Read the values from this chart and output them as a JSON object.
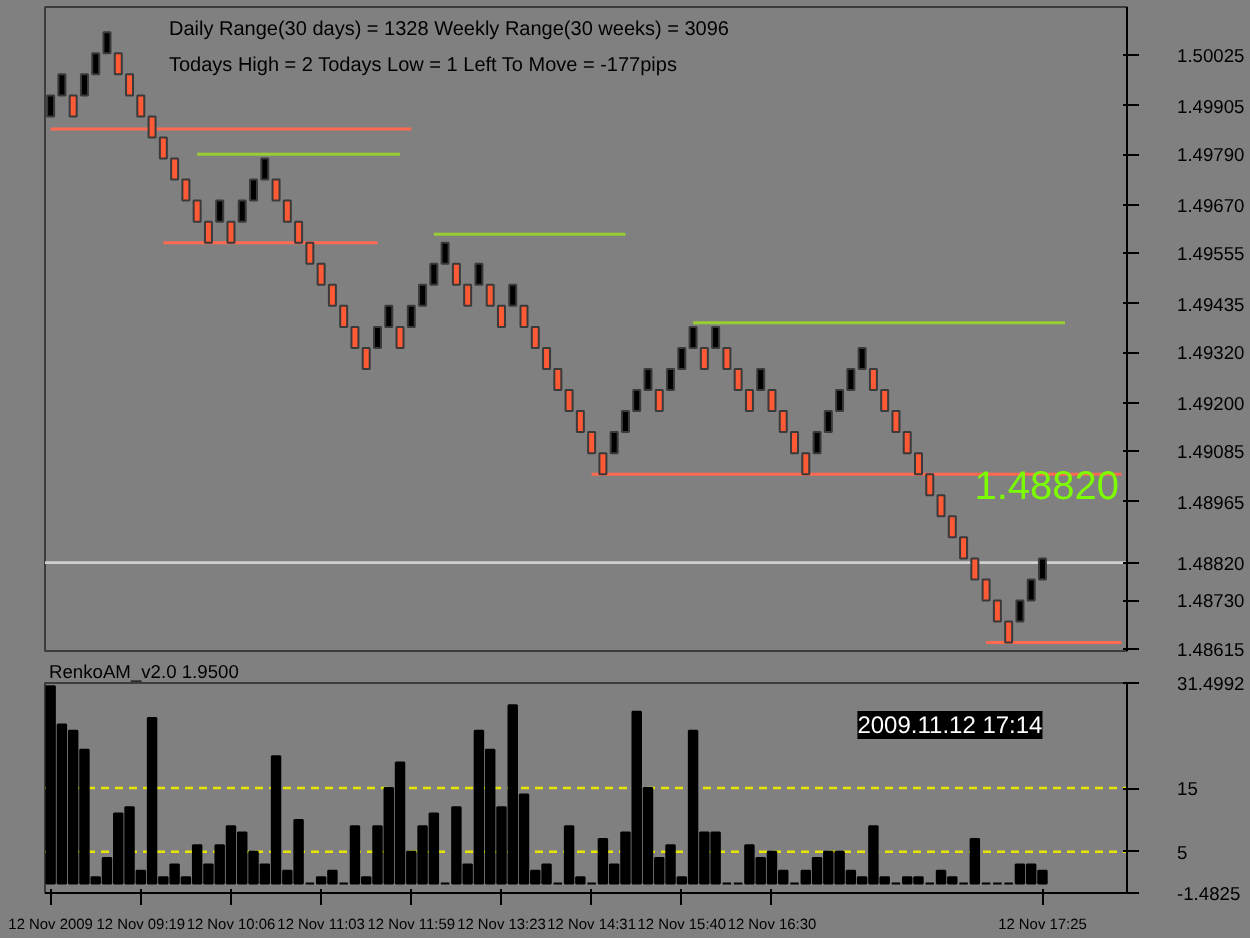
{
  "chart_data": [
    {
      "type": "candlestick",
      "categories": [
        null,
        null,
        null,
        null,
        null,
        null,
        null,
        null,
        null,
        null,
        null,
        null,
        null,
        null,
        null,
        null,
        null,
        null,
        null,
        null,
        null,
        null,
        null,
        null,
        null,
        null,
        null,
        null,
        null,
        null,
        null,
        null,
        null,
        null,
        null,
        null,
        null,
        null,
        null,
        null,
        null,
        null,
        null,
        null,
        null,
        null,
        null,
        null,
        null,
        null,
        null,
        null,
        null,
        null,
        null,
        null,
        null,
        null,
        null,
        null,
        null,
        null,
        null,
        null,
        null,
        null,
        null,
        null,
        null,
        null,
        null,
        null,
        null,
        null,
        null,
        null,
        null,
        null,
        null,
        null,
        null,
        null,
        null,
        null,
        null,
        null,
        null,
        null,
        null,
        null,
        null,
        null,
        null,
        null,
        null,
        null
      ],
      "ohlc": [
        [
          1.4988,
          1.4993,
          1.4988,
          1.4993
        ],
        [
          1.4993,
          1.4998,
          1.4993,
          1.4998
        ],
        [
          1.4993,
          1.4993,
          1.4988,
          1.4988
        ],
        [
          1.4993,
          1.4998,
          1.4993,
          1.4998
        ],
        [
          1.4998,
          1.5003,
          1.4998,
          1.5003
        ],
        [
          1.5003,
          1.5008,
          1.5003,
          1.5008
        ],
        [
          1.5003,
          1.5003,
          1.4998,
          1.4998
        ],
        [
          1.4998,
          1.4998,
          1.4993,
          1.4993
        ],
        [
          1.4993,
          1.4993,
          1.4988,
          1.4988
        ],
        [
          1.4988,
          1.4988,
          1.4983,
          1.4983
        ],
        [
          1.4983,
          1.4983,
          1.4978,
          1.4978
        ],
        [
          1.4978,
          1.4978,
          1.4973,
          1.4973
        ],
        [
          1.4973,
          1.4973,
          1.4968,
          1.4968
        ],
        [
          1.4968,
          1.4968,
          1.4963,
          1.4963
        ],
        [
          1.4963,
          1.4963,
          1.4958,
          1.4958
        ],
        [
          1.4963,
          1.4968,
          1.4963,
          1.4968
        ],
        [
          1.4963,
          1.4963,
          1.4958,
          1.4958
        ],
        [
          1.4963,
          1.4968,
          1.4963,
          1.4968
        ],
        [
          1.4968,
          1.4973,
          1.4968,
          1.4973
        ],
        [
          1.4973,
          1.4978,
          1.4973,
          1.4978
        ],
        [
          1.4973,
          1.4973,
          1.4968,
          1.4968
        ],
        [
          1.4968,
          1.4968,
          1.4963,
          1.4963
        ],
        [
          1.4963,
          1.4963,
          1.4958,
          1.4958
        ],
        [
          1.4958,
          1.4958,
          1.4953,
          1.4953
        ],
        [
          1.4953,
          1.4953,
          1.4948,
          1.4948
        ],
        [
          1.4948,
          1.4948,
          1.4943,
          1.4943
        ],
        [
          1.4943,
          1.4943,
          1.4938,
          1.4938
        ],
        [
          1.4938,
          1.4938,
          1.4933,
          1.4933
        ],
        [
          1.4933,
          1.4933,
          1.4928,
          1.4928
        ],
        [
          1.4933,
          1.4938,
          1.4933,
          1.4938
        ],
        [
          1.4938,
          1.4943,
          1.4938,
          1.4943
        ],
        [
          1.4938,
          1.4938,
          1.4933,
          1.4933
        ],
        [
          1.4938,
          1.4943,
          1.4938,
          1.4943
        ],
        [
          1.4943,
          1.4948,
          1.4943,
          1.4948
        ],
        [
          1.4948,
          1.4953,
          1.4948,
          1.4953
        ],
        [
          1.4953,
          1.4958,
          1.4953,
          1.4958
        ],
        [
          1.4953,
          1.4953,
          1.4948,
          1.4948
        ],
        [
          1.4948,
          1.4948,
          1.4943,
          1.4943
        ],
        [
          1.4948,
          1.4953,
          1.4948,
          1.4953
        ],
        [
          1.4948,
          1.4948,
          1.4943,
          1.4943
        ],
        [
          1.4943,
          1.4943,
          1.4938,
          1.4938
        ],
        [
          1.4943,
          1.4948,
          1.4943,
          1.4948
        ],
        [
          1.4943,
          1.4943,
          1.4938,
          1.4938
        ],
        [
          1.4938,
          1.4938,
          1.4933,
          1.4933
        ],
        [
          1.4933,
          1.4933,
          1.4928,
          1.4928
        ],
        [
          1.4928,
          1.4928,
          1.4923,
          1.4923
        ],
        [
          1.4923,
          1.4923,
          1.4918,
          1.4918
        ],
        [
          1.4918,
          1.4918,
          1.4913,
          1.4913
        ],
        [
          1.4913,
          1.4913,
          1.4908,
          1.4908
        ],
        [
          1.4908,
          1.4908,
          1.4903,
          1.4903
        ],
        [
          1.4908,
          1.4913,
          1.4908,
          1.4913
        ],
        [
          1.4913,
          1.4918,
          1.4913,
          1.4918
        ],
        [
          1.4918,
          1.4923,
          1.4918,
          1.4923
        ],
        [
          1.4923,
          1.4928,
          1.4923,
          1.4928
        ],
        [
          1.4923,
          1.4923,
          1.4918,
          1.4918
        ],
        [
          1.4923,
          1.4928,
          1.4923,
          1.4928
        ],
        [
          1.4928,
          1.4933,
          1.4928,
          1.4933
        ],
        [
          1.4933,
          1.4938,
          1.4933,
          1.4938
        ],
        [
          1.4933,
          1.4933,
          1.4928,
          1.4928
        ],
        [
          1.4933,
          1.4938,
          1.4933,
          1.4938
        ],
        [
          1.4933,
          1.4933,
          1.4928,
          1.4928
        ],
        [
          1.4928,
          1.4928,
          1.4923,
          1.4923
        ],
        [
          1.4923,
          1.4923,
          1.4918,
          1.4918
        ],
        [
          1.4923,
          1.4928,
          1.4923,
          1.4928
        ],
        [
          1.4923,
          1.4923,
          1.4918,
          1.4918
        ],
        [
          1.4918,
          1.4918,
          1.4913,
          1.4913
        ],
        [
          1.4913,
          1.4913,
          1.4908,
          1.4908
        ],
        [
          1.4908,
          1.4908,
          1.4903,
          1.4903
        ],
        [
          1.4908,
          1.4913,
          1.4908,
          1.4913
        ],
        [
          1.4913,
          1.4918,
          1.4913,
          1.4918
        ],
        [
          1.4918,
          1.4923,
          1.4918,
          1.4923
        ],
        [
          1.4923,
          1.4928,
          1.4923,
          1.4928
        ],
        [
          1.4928,
          1.4933,
          1.4928,
          1.4933
        ],
        [
          1.4928,
          1.4928,
          1.4923,
          1.4923
        ],
        [
          1.4923,
          1.4923,
          1.4918,
          1.4918
        ],
        [
          1.4918,
          1.4918,
          1.4913,
          1.4913
        ],
        [
          1.4913,
          1.4913,
          1.4908,
          1.4908
        ],
        [
          1.4908,
          1.4908,
          1.4903,
          1.4903
        ],
        [
          1.4903,
          1.4903,
          1.4898,
          1.4898
        ],
        [
          1.4898,
          1.4898,
          1.4893,
          1.4893
        ],
        [
          1.4893,
          1.4893,
          1.4888,
          1.4888
        ],
        [
          1.4888,
          1.4888,
          1.4883,
          1.4883
        ],
        [
          1.4883,
          1.4883,
          1.4878,
          1.4878
        ],
        [
          1.4878,
          1.4878,
          1.4873,
          1.4873
        ],
        [
          1.4873,
          1.4873,
          1.4868,
          1.4868
        ],
        [
          1.4868,
          1.4868,
          1.4863,
          1.4863
        ],
        [
          1.4868,
          1.4873,
          1.4868,
          1.4873
        ],
        [
          1.4873,
          1.4878,
          1.4873,
          1.4878
        ],
        [
          1.4878,
          1.4883,
          1.4878,
          1.4883
        ],
        null,
        null,
        null,
        null,
        null,
        null,
        null
      ],
      "colors": [
        "#000000",
        "#000000",
        "#ff5a36",
        "#000000",
        "#000000",
        "#000000",
        "#ff5a36",
        "#ff5a36",
        "#ff5a36",
        "#ff5a36",
        "#ff5a36",
        "#ff5a36",
        "#ff5a36",
        "#ff5a36",
        "#ff5a36",
        "#000000",
        "#ff5a36",
        "#000000",
        "#000000",
        "#000000",
        "#ff5a36",
        "#ff5a36",
        "#ff5a36",
        "#ff5a36",
        "#ff5a36",
        "#ff5a36",
        "#ff5a36",
        "#ff5a36",
        "#ff5a36",
        "#000000",
        "#000000",
        "#ff5a36",
        "#000000",
        "#000000",
        "#000000",
        "#000000",
        "#ff5a36",
        "#ff5a36",
        "#000000",
        "#ff5a36",
        "#ff5a36",
        "#000000",
        "#ff5a36",
        "#ff5a36",
        "#ff5a36",
        "#ff5a36",
        "#ff5a36",
        "#ff5a36",
        "#ff5a36",
        "#ff5a36",
        "#000000",
        "#000000",
        "#000000",
        "#000000",
        "#ff5a36",
        "#000000",
        "#000000",
        "#000000",
        "#ff5a36",
        "#000000",
        "#ff5a36",
        "#ff5a36",
        "#ff5a36",
        "#000000",
        "#ff5a36",
        "#ff5a36",
        "#ff5a36",
        "#ff5a36",
        "#000000",
        "#000000",
        "#000000",
        "#000000",
        "#000000",
        "#ff5a36",
        "#ff5a36",
        "#ff5a36",
        "#ff5a36",
        "#ff5a36",
        "#ff5a36",
        "#ff5a36",
        "#ff5a36",
        "#ff5a36",
        "#ff5a36",
        "#ff5a36",
        "#ff5a36",
        "#ff5a36",
        "#000000",
        "#000000",
        "#000000",
        null,
        null,
        null,
        null,
        null,
        null,
        null
      ],
      "series": [
        {
          "type": "line",
          "color": "#ff6a50",
          "values": [
            1.4985,
            1.4985,
            1.4985,
            1.4985,
            1.4985,
            1.4985,
            1.4985,
            1.4985,
            1.4985,
            1.4985,
            1.4985,
            1.4985,
            1.4985,
            1.4985,
            1.4985,
            1.4985,
            1.4985,
            1.4985,
            1.4985,
            1.4985,
            1.4985,
            1.4985,
            1.4985,
            1.4985,
            1.4985,
            1.4985,
            1.4985,
            1.4985,
            1.4985,
            1.4985,
            1.4985,
            1.4985,
            1.4985,
            null,
            null,
            null,
            null,
            null,
            null,
            null,
            null,
            null,
            null,
            null,
            null,
            null,
            null,
            null,
            null,
            null,
            null,
            null,
            null,
            null,
            null,
            null,
            null,
            null,
            null,
            null,
            null,
            null,
            null,
            null,
            null,
            null,
            null,
            null,
            null,
            null,
            null,
            null,
            null,
            null,
            null,
            null,
            null,
            null,
            null,
            null,
            null,
            null,
            null,
            null,
            null,
            null,
            null,
            null,
            null,
            null,
            null,
            null,
            null,
            null,
            null,
            null
          ]
        },
        {
          "type": "line",
          "color": "#9acd32",
          "values": [
            null,
            null,
            null,
            null,
            null,
            null,
            null,
            null,
            null,
            null,
            null,
            null,
            null,
            1.4979,
            1.4979,
            1.4979,
            1.4979,
            1.4979,
            1.4979,
            1.4979,
            1.4979,
            1.4979,
            1.4979,
            1.4979,
            1.4979,
            1.4979,
            1.4979,
            1.4979,
            1.4979,
            1.4979,
            1.4979,
            1.4979,
            null,
            null,
            null,
            null,
            null,
            null,
            null,
            null,
            null,
            null,
            null,
            null,
            null,
            null,
            null,
            null,
            null,
            null,
            null,
            null,
            null,
            null,
            null,
            null,
            null,
            null,
            null,
            null,
            null,
            null,
            null,
            null,
            null,
            null,
            null,
            null,
            null,
            null,
            null,
            null,
            null,
            null,
            null,
            null,
            null,
            null,
            null,
            null,
            null,
            null,
            null,
            null,
            null,
            null,
            null,
            null,
            null,
            null,
            null,
            null,
            null,
            null,
            null,
            null
          ]
        },
        {
          "type": "line",
          "color": "#ff6a50",
          "values": [
            null,
            null,
            null,
            null,
            null,
            null,
            null,
            null,
            null,
            null,
            1.4958,
            1.4958,
            1.4958,
            1.4958,
            1.4958,
            1.4958,
            1.4958,
            1.4958,
            1.4958,
            1.4958,
            1.4958,
            1.4958,
            1.4958,
            1.4958,
            1.4958,
            1.4958,
            1.4958,
            1.4958,
            1.4958,
            1.4958,
            null,
            null,
            null,
            null,
            null,
            null,
            null,
            null,
            null,
            null,
            null,
            null,
            null,
            null,
            null,
            null,
            null,
            null,
            null,
            null,
            null,
            null,
            null,
            null,
            null,
            null,
            null,
            null,
            null,
            null,
            null,
            null,
            null,
            null,
            null,
            null,
            null,
            null,
            null,
            null,
            null,
            null,
            null,
            null,
            null,
            null,
            null,
            null,
            null,
            null,
            null,
            null,
            null,
            null,
            null,
            null,
            null,
            null,
            null,
            null,
            null,
            null,
            null,
            null,
            null,
            null
          ]
        },
        {
          "type": "line",
          "color": "#9acd32",
          "values": [
            null,
            null,
            null,
            null,
            null,
            null,
            null,
            null,
            null,
            null,
            null,
            null,
            null,
            null,
            null,
            null,
            null,
            null,
            null,
            null,
            null,
            null,
            null,
            null,
            null,
            null,
            null,
            null,
            null,
            null,
            null,
            null,
            null,
            null,
            1.496,
            1.496,
            1.496,
            1.496,
            1.496,
            1.496,
            1.496,
            1.496,
            1.496,
            1.496,
            1.496,
            1.496,
            1.496,
            1.496,
            1.496,
            1.496,
            1.496,
            1.496,
            null,
            null,
            null,
            null,
            null,
            null,
            null,
            null,
            null,
            null,
            null,
            null,
            null,
            null,
            null,
            null,
            null,
            null,
            null,
            null,
            null,
            null,
            null,
            null,
            null,
            null,
            null,
            null,
            null,
            null,
            null,
            null,
            null,
            null,
            null,
            null,
            null,
            null,
            null,
            null,
            null,
            null,
            null,
            null
          ]
        },
        {
          "type": "line",
          "color": "#9acd32",
          "values": [
            null,
            null,
            null,
            null,
            null,
            null,
            null,
            null,
            null,
            null,
            null,
            null,
            null,
            null,
            null,
            null,
            null,
            null,
            null,
            null,
            null,
            null,
            null,
            null,
            null,
            null,
            null,
            null,
            null,
            null,
            null,
            null,
            null,
            null,
            null,
            null,
            null,
            null,
            null,
            null,
            null,
            null,
            null,
            null,
            null,
            null,
            null,
            null,
            null,
            null,
            null,
            null,
            null,
            null,
            null,
            null,
            null,
            1.4939,
            1.4939,
            1.4939,
            1.4939,
            1.4939,
            1.4939,
            1.4939,
            1.4939,
            1.4939,
            1.4939,
            1.4939,
            1.4939,
            1.4939,
            1.4939,
            1.4939,
            1.4939,
            1.4939,
            1.4939,
            1.4939,
            1.4939,
            1.4939,
            1.4939,
            1.4939,
            1.4939,
            1.4939,
            1.4939,
            1.4939,
            1.4939,
            1.4939,
            1.4939,
            1.4939,
            1.4939,
            1.4939,
            1.4939,
            null,
            null,
            null,
            null,
            null
          ]
        },
        {
          "type": "line",
          "color": "#ff6a50",
          "values": [
            null,
            null,
            null,
            null,
            null,
            null,
            null,
            null,
            null,
            null,
            null,
            null,
            null,
            null,
            null,
            null,
            null,
            null,
            null,
            null,
            null,
            null,
            null,
            null,
            null,
            null,
            null,
            null,
            null,
            null,
            null,
            null,
            null,
            null,
            null,
            null,
            null,
            null,
            null,
            null,
            null,
            null,
            null,
            null,
            null,
            null,
            null,
            null,
            1.4903,
            1.4903,
            1.4903,
            1.4903,
            1.4903,
            1.4903,
            1.4903,
            1.4903,
            1.4903,
            1.4903,
            1.4903,
            1.4903,
            1.4903,
            1.4903,
            1.4903,
            1.4903,
            1.4903,
            1.4903,
            1.4903,
            1.4903,
            1.4903,
            1.4903,
            1.4903,
            1.4903,
            1.4903,
            1.4903,
            1.4903,
            1.4903,
            1.4903,
            1.4903,
            1.4903,
            1.4903,
            1.4903,
            1.4903,
            1.4903,
            1.4903,
            1.4903,
            1.4903,
            1.4903,
            1.4903,
            1.4903,
            1.4903,
            1.4903,
            1.4903,
            1.4903,
            1.4903,
            1.4903,
            1.4903
          ]
        },
        {
          "type": "line",
          "color": "#ff6a50",
          "values": [
            null,
            null,
            null,
            null,
            null,
            null,
            null,
            null,
            null,
            null,
            null,
            null,
            null,
            null,
            null,
            null,
            null,
            null,
            null,
            null,
            null,
            null,
            null,
            null,
            null,
            null,
            null,
            null,
            null,
            null,
            null,
            null,
            null,
            null,
            null,
            null,
            null,
            null,
            null,
            null,
            null,
            null,
            null,
            null,
            null,
            null,
            null,
            null,
            null,
            null,
            null,
            null,
            null,
            null,
            null,
            null,
            null,
            null,
            null,
            null,
            null,
            null,
            null,
            null,
            null,
            null,
            null,
            null,
            null,
            null,
            null,
            null,
            null,
            null,
            null,
            null,
            null,
            null,
            null,
            null,
            null,
            null,
            null,
            1.4863,
            1.4863,
            1.4863,
            1.4863,
            1.4863,
            1.4863,
            1.4863,
            1.4863,
            1.4863,
            1.4863,
            1.4863,
            1.4863,
            1.4863
          ]
        }
      ],
      "ylim": [
        1.4861,
        1.5014
      ],
      "yticks": [
        {
          "value": 1.50025,
          "label": "1.50025"
        },
        {
          "value": 1.49905,
          "label": "1.49905"
        },
        {
          "value": 1.4979,
          "label": "1.49790"
        },
        {
          "value": 1.4967,
          "label": "1.49670"
        },
        {
          "value": 1.49555,
          "label": "1.49555"
        },
        {
          "value": 1.49435,
          "label": "1.49435"
        },
        {
          "value": 1.4932,
          "label": "1.49320"
        },
        {
          "value": 1.492,
          "label": "1.49200"
        },
        {
          "value": 1.49085,
          "label": "1.49085"
        },
        {
          "value": 1.48965,
          "label": "1.48965"
        },
        {
          "value": 1.4873,
          "label": "1.48730"
        },
        {
          "value": 1.48615,
          "label": "1.48615"
        }
      ],
      "tick_labels": "y",
      "ref_lines": [
        {
          "axis": "y",
          "value": 1.4882,
          "label": "1.48820",
          "color": "#d0d0d0"
        }
      ],
      "annotations": [
        "Daily Range(30 days) = 1328    Weekly Range(30 weeks) = 3096",
        "Todays High = 2    Todays Low = 1    Left To Move = -177pips",
        "1.48820"
      ]
    },
    {
      "type": "bar",
      "title": "RenkoAM_v2.0 1.9500",
      "color": "#000000",
      "categories": [
        "12 Nov 2009",
        null,
        null,
        null,
        null,
        null,
        null,
        null,
        "12 Nov 09:19",
        null,
        null,
        null,
        null,
        null,
        null,
        null,
        "12 Nov 10:06",
        null,
        null,
        null,
        null,
        null,
        null,
        null,
        "12 Nov 11:03",
        null,
        null,
        null,
        null,
        null,
        null,
        null,
        "12 Nov 11:59",
        null,
        null,
        null,
        null,
        null,
        null,
        null,
        "12 Nov 13:23",
        null,
        null,
        null,
        null,
        null,
        null,
        null,
        "12 Nov 14:31",
        null,
        null,
        null,
        null,
        null,
        null,
        null,
        "12 Nov 15:40",
        null,
        null,
        null,
        null,
        null,
        null,
        null,
        "12 Nov 16:30",
        null,
        null,
        null,
        null,
        null,
        null,
        null,
        null,
        null,
        null,
        null,
        null,
        null,
        null,
        null,
        null,
        null,
        null,
        null,
        null,
        null,
        null,
        null,
        "12 Nov 17:25",
        null,
        null,
        null,
        null,
        null,
        null,
        null
      ],
      "values": [
        31,
        25,
        24,
        21,
        1,
        4,
        11,
        12,
        2,
        26,
        1,
        3,
        1,
        6,
        3,
        6,
        9,
        8,
        5,
        3,
        20,
        2,
        10,
        0,
        1,
        2,
        0,
        9,
        1,
        9,
        15,
        19,
        5,
        9,
        11,
        0,
        12,
        3,
        24,
        21,
        12,
        28,
        14,
        2,
        3,
        0,
        9,
        1,
        0,
        7,
        3,
        8,
        27,
        15,
        4,
        6,
        1,
        24,
        8,
        8,
        0,
        0,
        6,
        4,
        5,
        2,
        0,
        2,
        4,
        5,
        5,
        2,
        1,
        9,
        1,
        0,
        1,
        1,
        0,
        2,
        1,
        0,
        7,
        0,
        0,
        0,
        3,
        3,
        2,
        null,
        null,
        null,
        null,
        null,
        null,
        null
      ],
      "ylim": [
        -1.4825,
        31.4992
      ],
      "yticks": [
        {
          "value": 31.4992,
          "label": "31.4992"
        },
        {
          "value": 15,
          "label": "15"
        },
        {
          "value": 5,
          "label": "5"
        },
        {
          "value": -1.4825,
          "label": "-1.4825"
        }
      ],
      "ref_lines": [
        {
          "axis": "y",
          "value": 15,
          "color": "#e6e600",
          "line_style": "dashed"
        },
        {
          "axis": "y",
          "value": 5,
          "color": "#e6e600",
          "line_style": "dashed"
        }
      ],
      "annotations": [
        "2009.11.12 17:14"
      ]
    }
  ]
}
